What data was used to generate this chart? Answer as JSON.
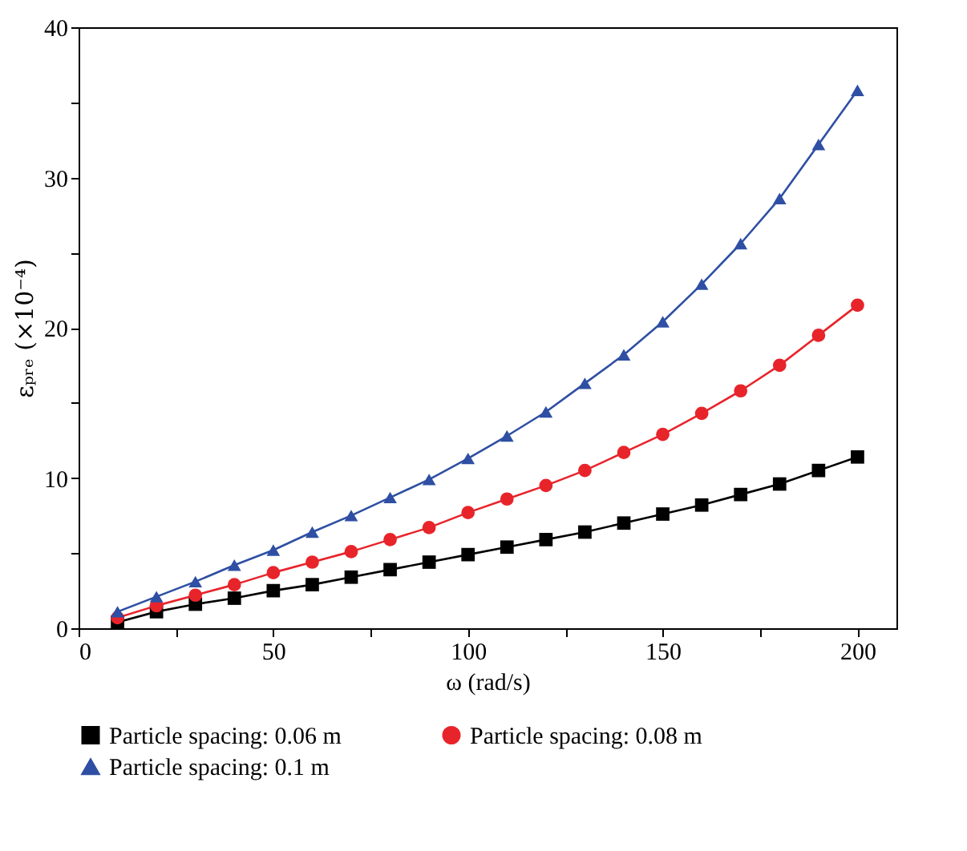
{
  "chart_data": {
    "type": "line",
    "xlabel": "ω (rad/s)",
    "ylabel": "εₚᵣₑ (×10⁻⁴)",
    "x": [
      10,
      20,
      30,
      40,
      50,
      60,
      70,
      80,
      90,
      100,
      110,
      120,
      130,
      140,
      150,
      160,
      170,
      180,
      190,
      200
    ],
    "series": [
      {
        "name": "Particle spacing: 0.06 m",
        "color": "#000000",
        "marker": "square",
        "values": [
          0.4,
          1.1,
          1.6,
          2.0,
          2.5,
          2.9,
          3.4,
          3.9,
          4.4,
          4.9,
          5.4,
          5.9,
          6.4,
          7.0,
          7.6,
          8.2,
          8.9,
          9.6,
          10.5,
          11.4
        ]
      },
      {
        "name": "Particle spacing: 0.08 m",
        "color": "#e8242b",
        "marker": "circle",
        "values": [
          0.7,
          1.5,
          2.2,
          2.9,
          3.7,
          4.4,
          5.1,
          5.9,
          6.7,
          7.7,
          8.6,
          9.5,
          10.5,
          11.7,
          12.9,
          14.3,
          15.8,
          17.5,
          19.5,
          21.5
        ]
      },
      {
        "name": "Particle spacing: 0.1 m",
        "color": "#2e4fa3",
        "marker": "triangle",
        "values": [
          1.1,
          2.1,
          3.1,
          4.2,
          5.2,
          6.4,
          7.5,
          8.7,
          9.9,
          11.3,
          12.8,
          14.4,
          16.3,
          18.2,
          20.4,
          22.9,
          25.6,
          28.6,
          32.2,
          35.8
        ]
      }
    ],
    "xlim": [
      0,
      210
    ],
    "ylim": [
      0,
      40
    ],
    "xticks": [
      0,
      {
        "value": 25,
        "label": null
      },
      50,
      {
        "value": 75,
        "label": null
      },
      100,
      {
        "value": 125,
        "label": null
      },
      150,
      {
        "value": 175,
        "label": null
      },
      200
    ],
    "yticks": [
      0,
      {
        "value": 5,
        "label": null
      },
      10,
      {
        "value": 15,
        "label": null
      },
      20,
      {
        "value": 25,
        "label": null
      },
      30,
      {
        "value": 35,
        "label": null
      },
      40
    ],
    "grid": false,
    "legend": "bottom",
    "line_style": "solid"
  }
}
